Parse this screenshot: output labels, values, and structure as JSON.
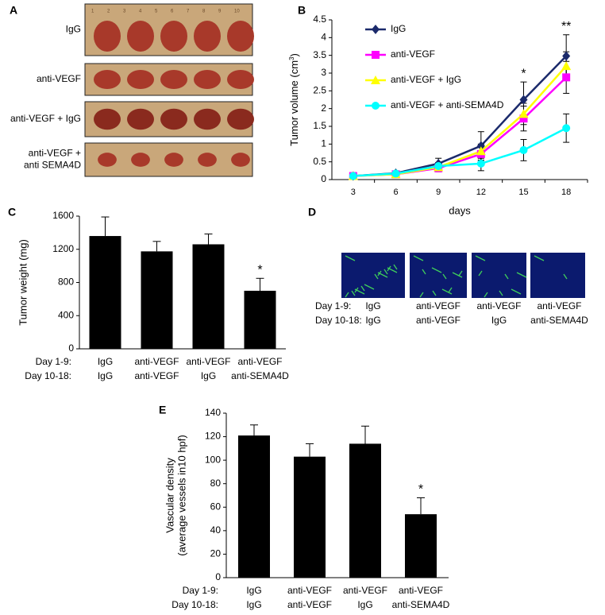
{
  "chart_data": [
    {
      "panel_label": "B",
      "type": "line",
      "categories": [
        "3",
        "6",
        "9",
        "12",
        "15",
        "18"
      ],
      "x_label": "days",
      "y_label": "Tumor volume (cm",
      "y_label_sup": "3",
      "y_label_end": ")",
      "ylim": [
        0,
        4.5
      ],
      "yticks": [
        0,
        0.5,
        1,
        1.5,
        2,
        2.5,
        3,
        3.5,
        4,
        4.5
      ],
      "legend": "upper left",
      "series": [
        {
          "name": "IgG",
          "color": "#1b2a6b",
          "marker": "diamond",
          "values": [
            0.1,
            0.18,
            0.45,
            0.95,
            2.25,
            3.48
          ],
          "errors": [
            0.05,
            0.05,
            0.15,
            0.4,
            0.5,
            0.6
          ]
        },
        {
          "name": "anti-VEGF",
          "color": "#ff00ff",
          "marker": "square",
          "values": [
            0.1,
            0.15,
            0.32,
            0.72,
            1.72,
            2.88
          ],
          "errors": [
            0.03,
            0.05,
            0.1,
            0.2,
            0.35,
            0.45
          ]
        },
        {
          "name": "anti-VEGF + IgG",
          "color": "#ffff00",
          "marker": "triangle",
          "values": [
            0.1,
            0.15,
            0.35,
            0.8,
            1.85,
            3.2
          ],
          "errors": [
            0.03,
            0.05,
            0.1,
            0.2,
            0.3,
            0.4
          ]
        },
        {
          "name": "anti-VEGF + anti-SEMA4D",
          "color": "#00ffff",
          "marker": "circle",
          "values": [
            0.1,
            0.17,
            0.38,
            0.45,
            0.83,
            1.45
          ],
          "errors": [
            0.03,
            0.05,
            0.1,
            0.2,
            0.3,
            0.4
          ]
        }
      ],
      "significance": [
        null,
        null,
        null,
        null,
        "*",
        "**"
      ]
    },
    {
      "panel_label": "C",
      "type": "bar",
      "row_labels": [
        "Day 1-9:",
        "Day 10-18:"
      ],
      "categories": [
        [
          "IgG",
          "IgG"
        ],
        [
          "anti-VEGF",
          "anti-VEGF"
        ],
        [
          "anti-VEGF",
          "IgG"
        ],
        [
          "anti-VEGF",
          "anti-SEMA4D"
        ]
      ],
      "y_label": [
        "Tumor weight (mg)"
      ],
      "ylim": [
        0,
        1600
      ],
      "yticks": [
        0,
        400,
        800,
        1200,
        1600
      ],
      "color": "#000000",
      "values": [
        1360,
        1175,
        1260,
        700
      ],
      "errors": [
        230,
        120,
        125,
        150
      ],
      "significance": [
        null,
        null,
        null,
        "*"
      ]
    },
    {
      "panel_label": "E",
      "type": "bar",
      "row_labels": [
        "Day 1-9:",
        "Day 10-18:"
      ],
      "categories": [
        [
          "IgG",
          "IgG"
        ],
        [
          "anti-VEGF",
          "anti-VEGF"
        ],
        [
          "anti-VEGF",
          "IgG"
        ],
        [
          "anti-VEGF",
          "anti-SEMA4D"
        ]
      ],
      "y_label": [
        "Vascular density",
        "(average vessels in10 hpf)"
      ],
      "ylim": [
        0,
        140
      ],
      "yticks": [
        0,
        20,
        40,
        60,
        80,
        100,
        120,
        140
      ],
      "color": "#000000",
      "values": [
        121,
        103,
        114,
        54
      ],
      "errors": [
        9,
        11,
        15,
        14
      ],
      "significance": [
        null,
        null,
        null,
        "*"
      ]
    }
  ],
  "panel_a": {
    "panel_label": "A",
    "rows": [
      [
        "IgG"
      ],
      [
        "anti-VEGF"
      ],
      [
        "anti-VEGF + IgG"
      ],
      [
        "anti-VEGF +",
        "anti SEMA4D"
      ]
    ],
    "ruler": [
      "1",
      "2",
      "3",
      "4",
      "5",
      "6",
      "7",
      "8",
      "9",
      "10"
    ]
  },
  "panel_d": {
    "panel_label": "D",
    "row_labels": [
      "Day 1-9:",
      "Day 10-18:"
    ],
    "columns": [
      [
        "IgG",
        "IgG"
      ],
      [
        "anti-VEGF",
        "anti-VEGF"
      ],
      [
        "anti-VEGF",
        "IgG"
      ],
      [
        "anti-VEGF",
        "anti-SEMA4D"
      ]
    ]
  }
}
